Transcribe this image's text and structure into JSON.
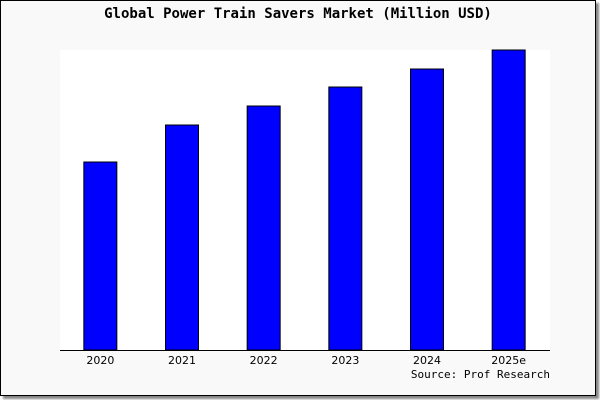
{
  "chart_data": {
    "type": "bar",
    "title": "Global Power Train Savers Market (Million USD)",
    "categories": [
      "2020",
      "2021",
      "2022",
      "2023",
      "2024",
      "2025e"
    ],
    "values": [
      188,
      225,
      244,
      263,
      281,
      300
    ],
    "ylim": [
      0,
      300
    ],
    "xlabel": "",
    "ylabel": "",
    "grid": false,
    "bar_color": "#0000ff",
    "source": "Source: Prof Research"
  }
}
